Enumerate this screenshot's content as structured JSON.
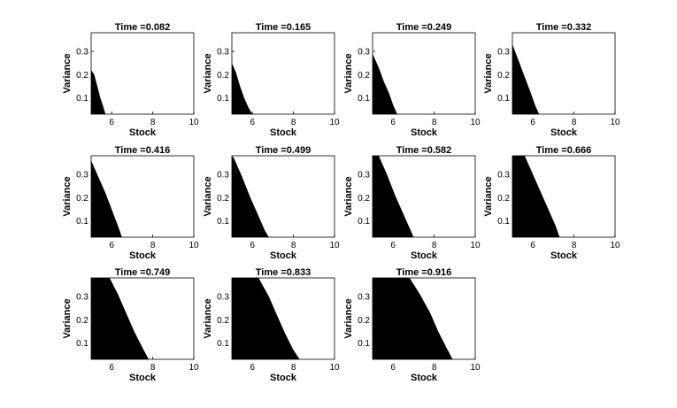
{
  "chart_data": {
    "type": "area",
    "title_prefix": "Time =",
    "xlabel": "Stock",
    "ylabel": "Variance",
    "xlim": [
      5,
      10
    ],
    "ylim": [
      0.03,
      0.38
    ],
    "xticks": [
      6,
      8,
      10
    ],
    "yticks": [
      0.1,
      0.2,
      0.3
    ],
    "xtick_labels": [
      "6",
      "8",
      "10"
    ],
    "ytick_labels": [
      "0.1",
      "0.2",
      "0.3"
    ],
    "panels": [
      {
        "time": "0.082",
        "title": "Time =0.082",
        "boundary": [
          [
            5.0,
            0.22
          ],
          [
            5.15,
            0.2
          ],
          [
            5.3,
            0.15
          ],
          [
            5.45,
            0.1
          ],
          [
            5.6,
            0.06
          ],
          [
            5.7,
            0.03
          ]
        ]
      },
      {
        "time": "0.165",
        "title": "Time =0.165",
        "boundary": [
          [
            5.0,
            0.25
          ],
          [
            5.2,
            0.21
          ],
          [
            5.4,
            0.15
          ],
          [
            5.6,
            0.1
          ],
          [
            5.8,
            0.06
          ],
          [
            6.0,
            0.03
          ]
        ]
      },
      {
        "time": "0.249",
        "title": "Time =0.249",
        "boundary": [
          [
            5.0,
            0.29
          ],
          [
            5.3,
            0.23
          ],
          [
            5.55,
            0.17
          ],
          [
            5.8,
            0.12
          ],
          [
            6.0,
            0.07
          ],
          [
            6.2,
            0.03
          ]
        ]
      },
      {
        "time": "0.332",
        "title": "Time =0.332",
        "boundary": [
          [
            5.0,
            0.33
          ],
          [
            5.3,
            0.26
          ],
          [
            5.6,
            0.19
          ],
          [
            5.9,
            0.12
          ],
          [
            6.1,
            0.07
          ],
          [
            6.3,
            0.03
          ]
        ]
      },
      {
        "time": "0.416",
        "title": "Time =0.416",
        "boundary": [
          [
            5.0,
            0.36
          ],
          [
            5.35,
            0.29
          ],
          [
            5.7,
            0.22
          ],
          [
            6.0,
            0.15
          ],
          [
            6.3,
            0.08
          ],
          [
            6.5,
            0.03
          ]
        ]
      },
      {
        "time": "0.499",
        "title": "Time =0.499",
        "boundary": [
          [
            5.0,
            0.38
          ],
          [
            5.1,
            0.37
          ],
          [
            5.5,
            0.29
          ],
          [
            5.9,
            0.2
          ],
          [
            6.3,
            0.12
          ],
          [
            6.6,
            0.06
          ],
          [
            6.8,
            0.03
          ]
        ]
      },
      {
        "time": "0.582",
        "title": "Time =0.582",
        "boundary": [
          [
            5.0,
            0.38
          ],
          [
            5.3,
            0.38
          ],
          [
            5.7,
            0.3
          ],
          [
            6.1,
            0.21
          ],
          [
            6.5,
            0.13
          ],
          [
            6.8,
            0.07
          ],
          [
            7.0,
            0.03
          ]
        ]
      },
      {
        "time": "0.666",
        "title": "Time =0.666",
        "boundary": [
          [
            5.0,
            0.38
          ],
          [
            5.6,
            0.38
          ],
          [
            6.0,
            0.3
          ],
          [
            6.4,
            0.22
          ],
          [
            6.8,
            0.14
          ],
          [
            7.1,
            0.08
          ],
          [
            7.3,
            0.03
          ]
        ]
      },
      {
        "time": "0.749",
        "title": "Time =0.749",
        "boundary": [
          [
            5.0,
            0.38
          ],
          [
            5.9,
            0.38
          ],
          [
            6.3,
            0.31
          ],
          [
            6.7,
            0.23
          ],
          [
            7.1,
            0.15
          ],
          [
            7.5,
            0.08
          ],
          [
            7.8,
            0.03
          ]
        ]
      },
      {
        "time": "0.833",
        "title": "Time =0.833",
        "boundary": [
          [
            5.0,
            0.38
          ],
          [
            6.3,
            0.38
          ],
          [
            6.8,
            0.3
          ],
          [
            7.2,
            0.22
          ],
          [
            7.6,
            0.14
          ],
          [
            8.0,
            0.07
          ],
          [
            8.3,
            0.03
          ]
        ]
      },
      {
        "time": "0.916",
        "title": "Time =0.916",
        "boundary": [
          [
            5.0,
            0.38
          ],
          [
            6.8,
            0.38
          ],
          [
            7.3,
            0.31
          ],
          [
            7.8,
            0.23
          ],
          [
            8.2,
            0.15
          ],
          [
            8.6,
            0.08
          ],
          [
            8.9,
            0.03
          ]
        ]
      }
    ]
  }
}
